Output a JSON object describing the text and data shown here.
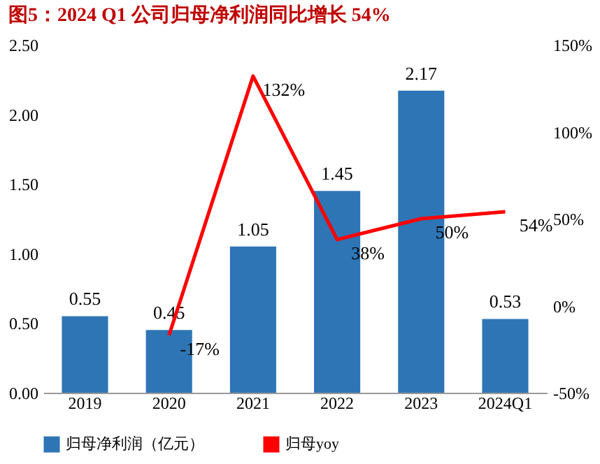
{
  "chart_data": {
    "type": "bar",
    "title": "图5：2024 Q1 公司归母净利润同比增长 54%",
    "categories": [
      "2019",
      "2020",
      "2021",
      "2022",
      "2023",
      "2024Q1"
    ],
    "series": [
      {
        "name": "归母净利润（亿元）",
        "color": "#2e75b6",
        "values": [
          0.55,
          0.45,
          1.05,
          1.45,
          2.17,
          0.53
        ],
        "value_labels": [
          "0.55",
          "0.45",
          "1.05",
          "1.45",
          "2.17",
          "0.53"
        ]
      },
      {
        "name": "归母yoy",
        "type": "line",
        "axis": "y2",
        "color": "#ff0000",
        "values": [
          null,
          -17,
          132,
          38,
          50,
          54
        ],
        "value_labels": [
          null,
          "-17%",
          "132%",
          "38%",
          "50%",
          "54%"
        ]
      }
    ],
    "ylim": [
      0,
      2.5
    ],
    "yticks": [
      {
        "value": 0,
        "label": "0.00"
      },
      {
        "value": 0.5,
        "label": "0.50"
      },
      {
        "value": 1,
        "label": "1.00"
      },
      {
        "value": 1.5,
        "label": "1.50"
      },
      {
        "value": 2,
        "label": "2.00"
      },
      {
        "value": 2.5,
        "label": "2.50"
      }
    ],
    "y2lim": [
      -50,
      150
    ],
    "y2ticks": [
      {
        "value": -50,
        "label": "-50%"
      },
      {
        "value": 0,
        "label": "0%"
      },
      {
        "value": 50,
        "label": "50%"
      },
      {
        "value": 100,
        "label": "100%"
      },
      {
        "value": 150,
        "label": "150%"
      }
    ],
    "legend": "bottom",
    "grid": false,
    "marker": "none"
  }
}
